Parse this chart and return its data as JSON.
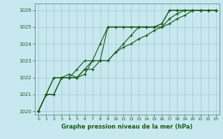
{
  "title": "Graphe pression niveau de la mer (hPa)",
  "bg_color": "#c8e8f0",
  "grid_color": "#aacccc",
  "line_color": "#1a5c1a",
  "xlim": [
    -0.5,
    23.5
  ],
  "ylim": [
    1019.8,
    1026.4
  ],
  "yticks": [
    1020,
    1021,
    1022,
    1023,
    1024,
    1025,
    1026
  ],
  "xticks": [
    0,
    1,
    2,
    3,
    4,
    5,
    6,
    7,
    8,
    9,
    10,
    11,
    12,
    13,
    14,
    15,
    16,
    17,
    18,
    19,
    20,
    21,
    22,
    23
  ],
  "series": [
    [
      1020.0,
      1021.0,
      1022.0,
      1022.0,
      1022.2,
      1022.0,
      1022.5,
      1023.0,
      1024.0,
      1025.0,
      1025.0,
      1025.0,
      1025.0,
      1025.0,
      1025.0,
      1025.0,
      1025.2,
      1026.0,
      1026.0,
      1026.0,
      1026.0,
      1026.0,
      1026.0,
      1026.0
    ],
    [
      1020.0,
      1021.0,
      1021.0,
      1022.0,
      1022.0,
      1022.0,
      1022.5,
      1022.5,
      1023.0,
      1023.0,
      1023.5,
      1023.8,
      1024.0,
      1024.3,
      1024.5,
      1024.8,
      1025.0,
      1025.2,
      1025.5,
      1025.7,
      1026.0,
      1026.0,
      1026.0,
      1026.0
    ],
    [
      1020.0,
      1021.0,
      1022.0,
      1022.0,
      1022.0,
      1022.0,
      1022.2,
      1023.0,
      1023.0,
      1025.0,
      1025.0,
      1025.0,
      1025.0,
      1025.0,
      1025.0,
      1025.0,
      1025.2,
      1026.0,
      1026.0,
      1026.0,
      1026.0,
      1026.0,
      1026.0,
      1026.0
    ],
    [
      1020.0,
      1021.0,
      1021.0,
      1022.0,
      1022.0,
      1022.5,
      1023.0,
      1023.0,
      1023.0,
      1023.0,
      1023.5,
      1024.0,
      1024.5,
      1025.0,
      1025.0,
      1025.0,
      1025.0,
      1025.5,
      1025.8,
      1026.0,
      1026.0,
      1026.0,
      1026.0,
      1026.0
    ]
  ]
}
